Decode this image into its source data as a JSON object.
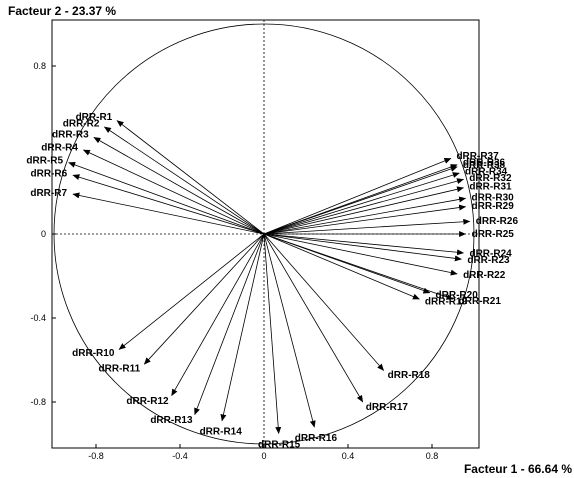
{
  "chart_data": {
    "type": "scatter",
    "title": "",
    "xlabel": "Facteur 1  -  66.64 %",
    "ylabel": "Facteur 2  -  23.37 %",
    "xlim": [
      -1.05,
      1.05
    ],
    "ylim": [
      -1.0,
      1.02
    ],
    "xticks": [
      "-0.8",
      "-0.4",
      "0",
      "0.4",
      "0.8"
    ],
    "yticks": [
      "0.8",
      "0",
      "-0.4",
      "-0.8"
    ],
    "grid": false,
    "correlation_circle": true,
    "vectors": [
      {
        "label": "dRR-R1",
        "x": -0.7,
        "y": 0.54
      },
      {
        "label": "dRR-R2",
        "x": -0.76,
        "y": 0.51
      },
      {
        "label": "dRR-R3",
        "x": -0.81,
        "y": 0.46
      },
      {
        "label": "dRR-R4",
        "x": -0.86,
        "y": 0.4
      },
      {
        "label": "dRR-R5",
        "x": -0.93,
        "y": 0.34
      },
      {
        "label": "dRR-R6",
        "x": -0.91,
        "y": 0.28
      },
      {
        "label": "dRR-R7",
        "x": -0.91,
        "y": 0.19
      },
      {
        "label": "dRR-R10",
        "x": -0.69,
        "y": -0.55
      },
      {
        "label": "dRR-R11",
        "x": -0.57,
        "y": -0.62
      },
      {
        "label": "dRR-R12",
        "x": -0.44,
        "y": -0.77
      },
      {
        "label": "dRR-R13",
        "x": -0.33,
        "y": -0.86
      },
      {
        "label": "dRR-R14",
        "x": -0.2,
        "y": -0.89
      },
      {
        "label": "dRR-R15",
        "x": 0.07,
        "y": -0.95
      },
      {
        "label": "dRR-R16",
        "x": 0.24,
        "y": -0.92
      },
      {
        "label": "dRR-R17",
        "x": 0.47,
        "y": -0.8
      },
      {
        "label": "dRR-R18",
        "x": 0.57,
        "y": -0.65
      },
      {
        "label": "dRR-R19",
        "x": 0.74,
        "y": -0.31
      },
      {
        "label": "dRR-R20",
        "x": 0.79,
        "y": -0.28
      },
      {
        "label": "dRR-R21",
        "x": 0.9,
        "y": -0.31
      },
      {
        "label": "dRR-R22",
        "x": 0.92,
        "y": -0.19
      },
      {
        "label": "dRR-R23",
        "x": 0.94,
        "y": -0.12
      },
      {
        "label": "dRR-R24",
        "x": 0.95,
        "y": -0.09
      },
      {
        "label": "dRR-R25",
        "x": 0.96,
        "y": 0.0
      },
      {
        "label": "dRR-R26",
        "x": 0.98,
        "y": 0.06
      },
      {
        "label": "dRR-R29",
        "x": 0.96,
        "y": 0.13
      },
      {
        "label": "dRR-R30",
        "x": 0.96,
        "y": 0.17
      },
      {
        "label": "dRR-R31",
        "x": 0.95,
        "y": 0.22
      },
      {
        "label": "dRR-R32",
        "x": 0.95,
        "y": 0.26
      },
      {
        "label": "dRR-R34",
        "x": 0.93,
        "y": 0.29
      },
      {
        "label": "dRR-R36",
        "x": 0.92,
        "y": 0.33
      },
      {
        "label": "dRR-R37",
        "x": 0.89,
        "y": 0.36
      },
      {
        "label": "dRR-R38",
        "x": 0.92,
        "y": 0.32
      }
    ]
  }
}
